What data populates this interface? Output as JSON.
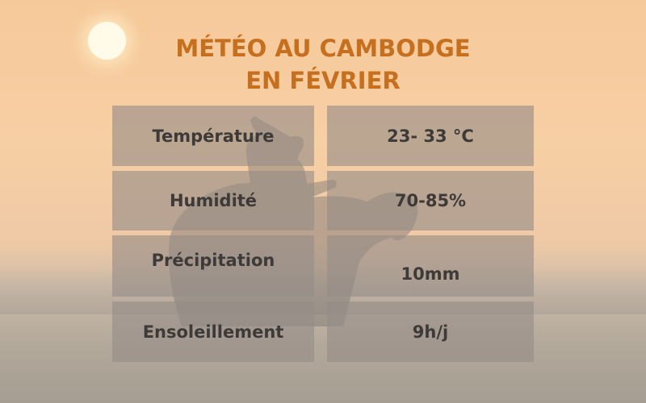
{
  "title": {
    "line1": "MÉTÉO AU CAMBODGE",
    "line2": "EN FÉVRIER"
  },
  "table": {
    "rows": [
      {
        "label": "Température",
        "value": "23- 33 °C"
      },
      {
        "label": "Humidité",
        "value": "70-85%"
      },
      {
        "label": "Précipitation",
        "value": "10mm"
      },
      {
        "label": "Ensoleillement",
        "value": "9h/j"
      }
    ]
  },
  "colors": {
    "title": "#c56f1f",
    "cell": "#968c87",
    "text": "#3e3a37"
  }
}
